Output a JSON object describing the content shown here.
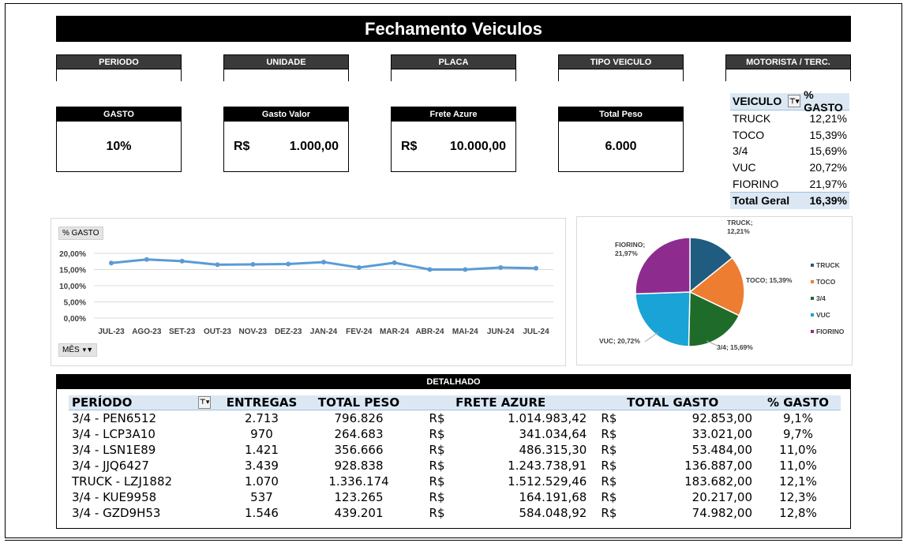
{
  "title": "Fechamento Veiculos",
  "filters": [
    {
      "label": "PERIODO"
    },
    {
      "label": "UNIDADE"
    },
    {
      "label": "PLACA"
    },
    {
      "label": "TIPO VEICULO"
    },
    {
      "label": "MOTORISTA / TERC."
    }
  ],
  "kpis": {
    "gasto": {
      "label": "GASTO",
      "value": "10%"
    },
    "gasto_valor": {
      "label": "Gasto Valor",
      "currency": "R$",
      "value": "1.000,00"
    },
    "frete_azure": {
      "label": "Frete Azure",
      "currency": "R$",
      "value": "10.000,00"
    },
    "total_peso": {
      "label": "Total Peso",
      "value": "6.000"
    }
  },
  "vehicle_pivot": {
    "col1": "VEICULO",
    "col2": "% GASTO",
    "rows": [
      {
        "name": "TRUCK",
        "value": "12,21%"
      },
      {
        "name": "TOCO",
        "value": "15,39%"
      },
      {
        "name": "3/4",
        "value": "15,69%"
      },
      {
        "name": "VUC",
        "value": "20,72%"
      },
      {
        "name": "FIORINO",
        "value": "21,97%"
      }
    ],
    "total_label": "Total Geral",
    "total_value": "16,39%"
  },
  "line_chart_tag": "% GASTO",
  "line_chart_filter": "MÊS",
  "chart_data": [
    {
      "type": "line",
      "categories": [
        "JUL-23",
        "AGO-23",
        "SET-23",
        "OUT-23",
        "NOV-23",
        "DEZ-23",
        "JAN-24",
        "FEV-24",
        "MAR-24",
        "ABR-24",
        "MAI-24",
        "JUN-24",
        "JUL-24"
      ],
      "series": [
        {
          "values": [
            17.0,
            18.1,
            17.6,
            16.5,
            16.6,
            16.7,
            17.3,
            15.6,
            17.1,
            15.0,
            15.0,
            15.6,
            15.4
          ]
        }
      ],
      "yticks": [
        "0,00%",
        "5,00%",
        "10,00%",
        "15,00%",
        "20,00%"
      ],
      "ylim": [
        0,
        20
      ],
      "grid": true,
      "color": "#5b9bd5"
    },
    {
      "type": "pie",
      "slices": [
        {
          "label": "TRUCK",
          "value": 12.21,
          "text": "TRUCK;",
          "text2": "12,21%",
          "color": "#1f5c80"
        },
        {
          "label": "TOCO",
          "value": 15.39,
          "text": "TOCO; 15,39%",
          "color": "#ed7d31"
        },
        {
          "label": "3/4",
          "value": 15.69,
          "text": "3/4; 15,69%",
          "color": "#1e6b2a"
        },
        {
          "label": "VUC",
          "value": 20.72,
          "text": "VUC; 20,72%",
          "color": "#1aa3d6"
        },
        {
          "label": "FIORINO",
          "value": 21.97,
          "text": "FIORINO;",
          "text2": "21,97%",
          "color": "#8e2b8e"
        }
      ],
      "legend": [
        "TRUCK",
        "TOCO",
        "3/4",
        "VUC",
        "FIORINO"
      ],
      "legend_position": "right"
    }
  ],
  "detail": {
    "title": "DETALHADO",
    "columns": [
      "PERÍODO",
      "ENTREGAS",
      "TOTAL PESO",
      "FRETE AZURE",
      "TOTAL GASTO",
      "% GASTO"
    ],
    "rows": [
      {
        "periodo": "3/4 - PEN6512",
        "entregas": "2.713",
        "peso": "796.826",
        "cur1": "R$",
        "frete": "1.014.983,42",
        "cur2": "R$",
        "gasto": "92.853,00",
        "pct": "9,1%"
      },
      {
        "periodo": "3/4 - LCP3A10",
        "entregas": "970",
        "peso": "264.683",
        "cur1": "R$",
        "frete": "341.034,64",
        "cur2": "R$",
        "gasto": "33.021,00",
        "pct": "9,7%"
      },
      {
        "periodo": "3/4 - LSN1E89",
        "entregas": "1.421",
        "peso": "356.666",
        "cur1": "R$",
        "frete": "486.315,30",
        "cur2": "R$",
        "gasto": "53.484,00",
        "pct": "11,0%"
      },
      {
        "periodo": "3/4 - JJQ6427",
        "entregas": "3.439",
        "peso": "928.838",
        "cur1": "R$",
        "frete": "1.243.738,91",
        "cur2": "R$",
        "gasto": "136.887,00",
        "pct": "11,0%"
      },
      {
        "periodo": "TRUCK - LZJ1882",
        "entregas": "1.070",
        "peso": "1.336.174",
        "cur1": "R$",
        "frete": "1.512.529,46",
        "cur2": "R$",
        "gasto": "183.682,00",
        "pct": "12,1%"
      },
      {
        "periodo": "3/4 - KUE9958",
        "entregas": "537",
        "peso": "123.265",
        "cur1": "R$",
        "frete": "164.191,68",
        "cur2": "R$",
        "gasto": "20.217,00",
        "pct": "12,3%"
      },
      {
        "periodo": "3/4 - GZD9H53",
        "entregas": "1.546",
        "peso": "439.201",
        "cur1": "R$",
        "frete": "584.048,92",
        "cur2": "R$",
        "gasto": "74.982,00",
        "pct": "12,8%"
      }
    ]
  }
}
